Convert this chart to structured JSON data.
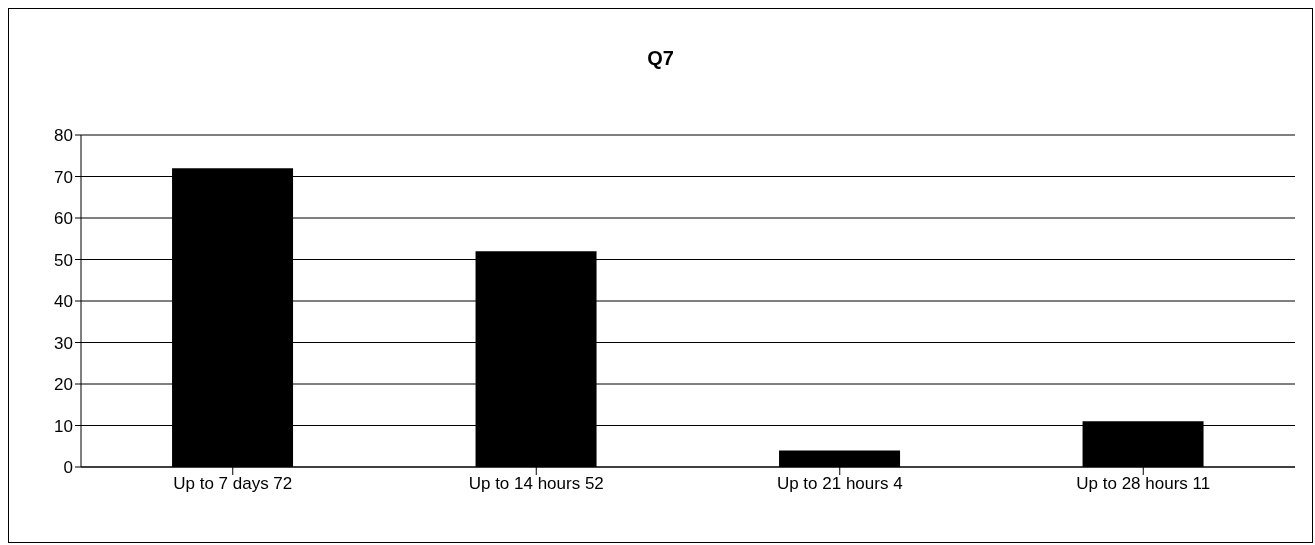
{
  "chart_data": {
    "type": "bar",
    "title": "Q7",
    "categories": [
      "Up to 7 days 72",
      "Up to 14 hours 52",
      "Up to 21 hours 4",
      "Up to 28 hours 11"
    ],
    "values": [
      72,
      52,
      4,
      11
    ],
    "color": "#000000",
    "ylim": [
      0,
      80
    ],
    "yticks": [
      0,
      10,
      20,
      30,
      40,
      50,
      60,
      70,
      80
    ],
    "grid": "y"
  }
}
